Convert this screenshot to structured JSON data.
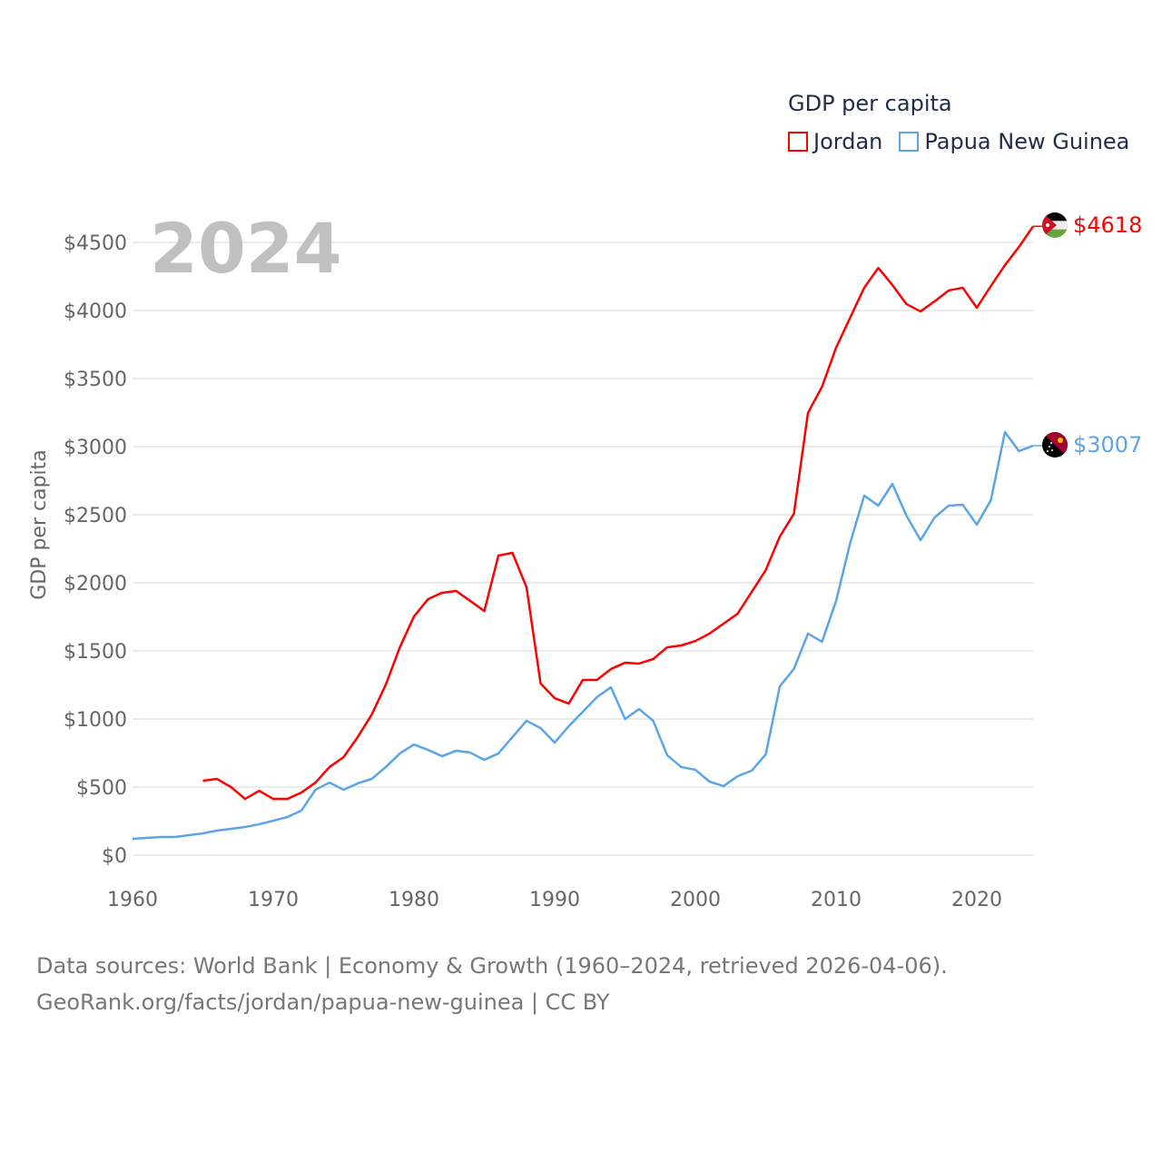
{
  "chart_data": {
    "type": "line",
    "title": "GDP per capita",
    "ylabel": "GDP per capita",
    "xlabel": "",
    "year_label": "2024",
    "xlim": [
      1960,
      2024
    ],
    "ylim": [
      0,
      4700
    ],
    "x_ticks": [
      1960,
      1970,
      1980,
      1990,
      2000,
      2010,
      2020
    ],
    "y_ticks": [
      0,
      500,
      1000,
      1500,
      2000,
      2500,
      3000,
      3500,
      4000,
      4500
    ],
    "y_tick_labels": [
      "$0",
      "$500",
      "$1000",
      "$1500",
      "$2000",
      "$2500",
      "$3000",
      "$3500",
      "$4000",
      "$4500"
    ],
    "grid": true,
    "legend_position": "top-right",
    "series": [
      {
        "name": "Jordan",
        "color": "#ff0000",
        "end_label": "$4618",
        "start_year": 1965,
        "values": [
          547,
          560,
          500,
          413,
          473,
          413,
          413,
          460,
          533,
          647,
          720,
          867,
          1033,
          1253,
          1527,
          1753,
          1880,
          1927,
          1940,
          1867,
          1793,
          2200,
          2220,
          1967,
          1260,
          1153,
          1113,
          1287,
          1287,
          1367,
          1413,
          1407,
          1440,
          1527,
          1540,
          1573,
          1627,
          1700,
          1773,
          1933,
          2093,
          2340,
          2507,
          3247,
          3440,
          3727,
          3947,
          4167,
          4313,
          4187,
          4047,
          3993,
          4067,
          4147,
          4167,
          4020,
          4180,
          4333,
          4467,
          4618
        ]
      },
      {
        "name": "Papua New Guinea",
        "color": "#5aa5e8",
        "end_label": "$3007",
        "start_year": 1960,
        "values": [
          120,
          127,
          133,
          133,
          147,
          160,
          180,
          193,
          207,
          227,
          253,
          280,
          327,
          480,
          533,
          480,
          527,
          560,
          647,
          747,
          813,
          773,
          727,
          767,
          753,
          700,
          747,
          867,
          987,
          933,
          827,
          947,
          1053,
          1160,
          1233,
          1000,
          1073,
          987,
          733,
          647,
          627,
          540,
          507,
          580,
          620,
          740,
          1240,
          1367,
          1627,
          1567,
          1867,
          2293,
          2640,
          2567,
          2727,
          2493,
          2313,
          2480,
          2567,
          2573,
          2427,
          2607,
          3107,
          2967,
          3007
        ]
      }
    ]
  },
  "footer": {
    "line1": "Data sources: World Bank | Economy & Growth (1960–2024, retrieved 2026-04-06).",
    "line2": "GeoRank.org/facts/jordan/papua-new-guinea | CC BY"
  }
}
